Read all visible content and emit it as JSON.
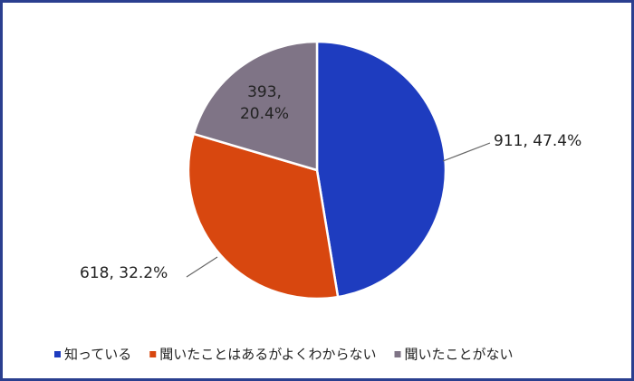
{
  "chart_data": {
    "type": "pie",
    "categories": [
      "知っている",
      "聞いたことはあるがよくわからない",
      "聞いたことがない"
    ],
    "values": [
      911,
      618,
      393
    ],
    "value_labels": [
      "911, 47.4%",
      "618, 32.2%",
      "393, 20.4%"
    ],
    "colors": [
      "#1e3cbf",
      "#d8470f",
      "#7f7486"
    ],
    "legend": "bottom"
  }
}
